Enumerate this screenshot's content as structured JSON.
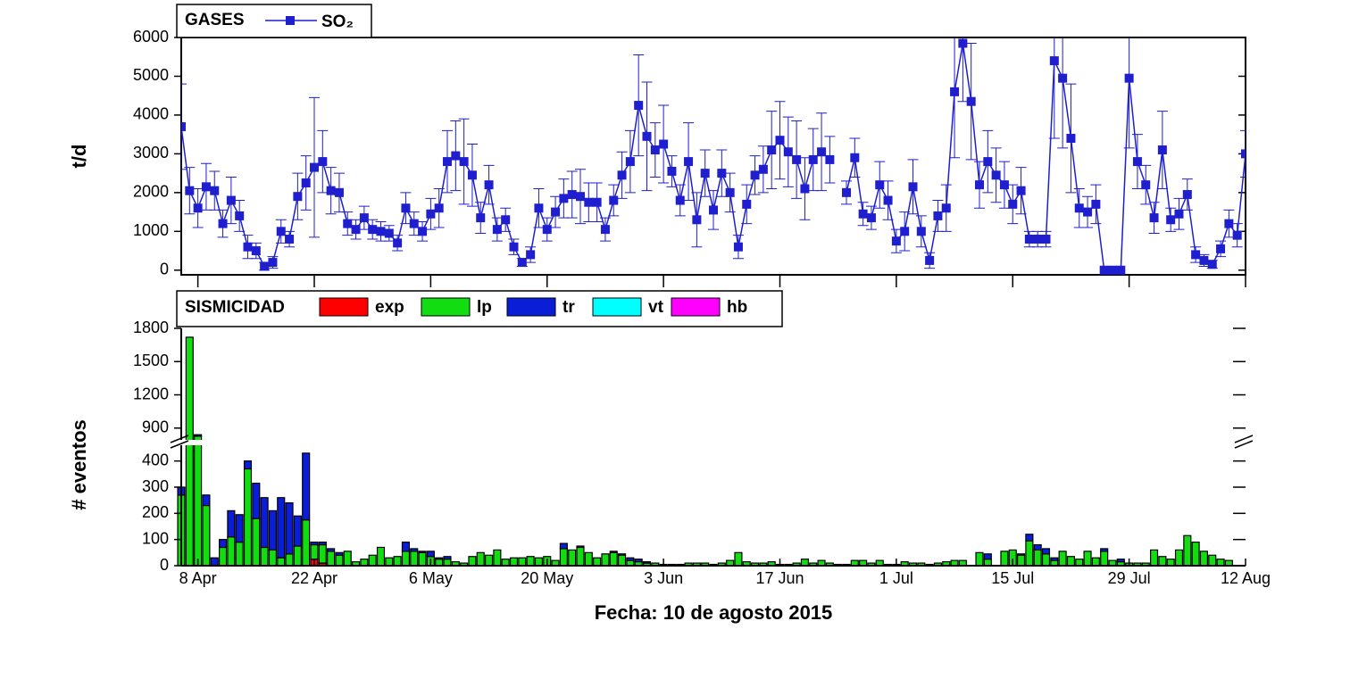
{
  "chart_data": [
    {
      "type": "line",
      "legend_title": "GASES",
      "ylabel": "t/d",
      "x": [
        -2,
        -1,
        0,
        1,
        2,
        3,
        4,
        5,
        6,
        7,
        8,
        9,
        10,
        11,
        12,
        13,
        14,
        15,
        16,
        17,
        18,
        19,
        20,
        21,
        22,
        23,
        24,
        25,
        26,
        27,
        28,
        29,
        30,
        31,
        32,
        33,
        34,
        35,
        36,
        37,
        38,
        39,
        40,
        41,
        42,
        43,
        44,
        45,
        46,
        47,
        48,
        49,
        50,
        51,
        52,
        53,
        54,
        55,
        56,
        57,
        58,
        59,
        60,
        61,
        62,
        63,
        64,
        65,
        66,
        67,
        68,
        69,
        70,
        71,
        72,
        73,
        74,
        75,
        76,
        77,
        78,
        79,
        80,
        81,
        82,
        83,
        84,
        85,
        86,
        87,
        88,
        89,
        90,
        91,
        92,
        93,
        94,
        95,
        96,
        97,
        98,
        99,
        100,
        101,
        102,
        103,
        104,
        105,
        106,
        107,
        108,
        109,
        110,
        111,
        112,
        113,
        114,
        115,
        116,
        117,
        118,
        119,
        120,
        121,
        122,
        123,
        124,
        125,
        126
      ],
      "series": [
        {
          "name": "SO₂",
          "color": "#1f1fd0",
          "values": [
            3700,
            2050,
            1600,
            2150,
            2050,
            1200,
            1800,
            1400,
            600,
            500,
            100,
            200,
            1000,
            800,
            1900,
            2250,
            2650,
            2800,
            2050,
            2000,
            1200,
            1050,
            1350,
            1050,
            1000,
            950,
            700,
            1600,
            1200,
            1000,
            1450,
            1600,
            2800,
            2950,
            2800,
            2450,
            1350,
            2200,
            1050,
            1300,
            600,
            200,
            400,
            1600,
            1050,
            1500,
            1850,
            1950,
            1900,
            1750,
            1750,
            1050,
            1800,
            2450,
            2800,
            4250,
            3450,
            3100,
            3250,
            2550,
            1800,
            2800,
            1300,
            2500,
            1550,
            2500,
            2000,
            600,
            1700,
            2450,
            2600,
            3100,
            3350,
            3050,
            2850,
            2100,
            2850,
            3050,
            2850,
            null,
            2000,
            2900,
            1450,
            1350,
            2200,
            1800,
            750,
            1000,
            2150,
            1000,
            250,
            1400,
            1600,
            4600,
            5850,
            4350,
            2200,
            2800,
            2450,
            2200,
            1700,
            2050,
            800,
            800,
            800,
            5400,
            4950,
            3400,
            1600,
            1500,
            1700,
            0,
            0,
            0,
            4950,
            2800,
            2200,
            1350,
            3100,
            1300,
            1450,
            1950,
            400,
            250,
            150,
            550,
            1200,
            900,
            3000
          ],
          "errors": [
            1100,
            600,
            500,
            600,
            500,
            350,
            600,
            400,
            300,
            200,
            100,
            150,
            300,
            200,
            600,
            700,
            1800,
            800,
            600,
            500,
            300,
            250,
            300,
            250,
            250,
            200,
            200,
            400,
            300,
            250,
            400,
            500,
            800,
            900,
            1100,
            800,
            400,
            500,
            300,
            300,
            200,
            100,
            200,
            500,
            300,
            400,
            500,
            600,
            700,
            500,
            500,
            300,
            400,
            600,
            800,
            1300,
            1400,
            700,
            1000,
            400,
            400,
            1000,
            700,
            600,
            500,
            600,
            500,
            300,
            500,
            500,
            600,
            1000,
            1000,
            900,
            1000,
            800,
            800,
            1000,
            600,
            null,
            300,
            500,
            300,
            300,
            600,
            500,
            300,
            500,
            700,
            400,
            200,
            400,
            600,
            1700,
            1500,
            1500,
            600,
            800,
            700,
            600,
            500,
            600,
            200,
            200,
            200,
            2000,
            1800,
            1400,
            500,
            400,
            500,
            0,
            0,
            0,
            1800,
            700,
            500,
            400,
            1000,
            300,
            400,
            400,
            200,
            150,
            100,
            200,
            350,
            300,
            600
          ]
        }
      ],
      "xlim": [
        -2,
        126
      ],
      "ylim": [
        -120,
        6000
      ],
      "yticks": [
        0,
        1000,
        2000,
        3000,
        4000,
        5000,
        6000
      ]
    },
    {
      "type": "bar",
      "legend_title": "SISMICIDAD",
      "ylabel": "# eventos",
      "xlabel": "Fecha: 10 de agosto 2015",
      "stacked": true,
      "x": [
        -2,
        -1,
        0,
        1,
        2,
        3,
        4,
        5,
        6,
        7,
        8,
        9,
        10,
        11,
        12,
        13,
        14,
        15,
        16,
        17,
        18,
        19,
        20,
        21,
        22,
        23,
        24,
        25,
        26,
        27,
        28,
        29,
        30,
        31,
        32,
        33,
        34,
        35,
        36,
        37,
        38,
        39,
        40,
        41,
        42,
        43,
        44,
        45,
        46,
        47,
        48,
        49,
        50,
        51,
        52,
        53,
        54,
        55,
        56,
        57,
        58,
        59,
        60,
        61,
        62,
        63,
        64,
        65,
        66,
        67,
        68,
        69,
        70,
        71,
        72,
        73,
        74,
        75,
        76,
        77,
        78,
        79,
        80,
        81,
        82,
        83,
        84,
        85,
        86,
        87,
        88,
        89,
        90,
        91,
        92,
        93,
        94,
        95,
        96,
        97,
        98,
        99,
        100,
        101,
        102,
        103,
        104,
        105,
        106,
        107,
        108,
        109,
        110,
        111,
        112,
        113,
        114,
        115,
        116,
        117,
        118,
        119,
        120,
        121,
        122,
        123,
        124
      ],
      "series": [
        {
          "name": "exp",
          "color": "#ff0000",
          "values": [
            0,
            0,
            0,
            0,
            0,
            0,
            0,
            0,
            0,
            0,
            0,
            0,
            0,
            0,
            0,
            0,
            25,
            10,
            0,
            0,
            0,
            0,
            0,
            0,
            0,
            0,
            0,
            0,
            0,
            0,
            0,
            0,
            0,
            0,
            0,
            0,
            0,
            0,
            0,
            0,
            0,
            0,
            0,
            0,
            0,
            0,
            0,
            0,
            0,
            0,
            0,
            0,
            0,
            0,
            0,
            0,
            0,
            0,
            0,
            0,
            0,
            0,
            0,
            0,
            0,
            0,
            0,
            0,
            0,
            0,
            0,
            0,
            0,
            0,
            0,
            0,
            0,
            0,
            0,
            0,
            0,
            0,
            0,
            0,
            0,
            0,
            0,
            0,
            0,
            0,
            0,
            0,
            0,
            0,
            0,
            0,
            0,
            0,
            0,
            0,
            0,
            0,
            0,
            0,
            0,
            0,
            0,
            0,
            0,
            0,
            0,
            0,
            0,
            0,
            0,
            0,
            0,
            0,
            0,
            0,
            0,
            0,
            0,
            0,
            0,
            0,
            0
          ]
        },
        {
          "name": "lp",
          "color": "#11dd11",
          "values": [
            270,
            1720,
            780,
            230,
            0,
            70,
            110,
            90,
            370,
            180,
            70,
            60,
            30,
            45,
            75,
            175,
            55,
            70,
            55,
            40,
            55,
            15,
            25,
            40,
            70,
            30,
            35,
            55,
            55,
            50,
            35,
            25,
            25,
            15,
            10,
            35,
            50,
            40,
            60,
            25,
            30,
            30,
            35,
            30,
            35,
            20,
            65,
            60,
            70,
            50,
            30,
            45,
            50,
            40,
            20,
            15,
            10,
            10,
            5,
            5,
            5,
            10,
            10,
            10,
            5,
            10,
            20,
            50,
            15,
            10,
            10,
            15,
            5,
            5,
            10,
            25,
            10,
            20,
            10,
            5,
            5,
            20,
            20,
            10,
            20,
            5,
            5,
            15,
            10,
            10,
            5,
            10,
            15,
            20,
            20,
            0,
            50,
            25,
            0,
            55,
            60,
            40,
            95,
            60,
            45,
            20,
            55,
            35,
            25,
            55,
            30,
            55,
            20,
            15,
            10,
            10,
            10,
            60,
            35,
            25,
            60,
            115,
            90,
            55,
            40,
            25,
            20
          ]
        },
        {
          "name": "tr",
          "color": "#0a1ed8",
          "values": [
            30,
            0,
            40,
            40,
            30,
            30,
            100,
            105,
            30,
            135,
            190,
            150,
            230,
            195,
            115,
            255,
            10,
            10,
            10,
            10,
            0,
            0,
            0,
            0,
            0,
            0,
            0,
            35,
            10,
            5,
            20,
            5,
            10,
            0,
            0,
            0,
            0,
            0,
            0,
            0,
            0,
            0,
            0,
            0,
            0,
            0,
            20,
            0,
            5,
            0,
            0,
            0,
            5,
            5,
            10,
            10,
            5,
            0,
            0,
            0,
            0,
            0,
            0,
            0,
            0,
            0,
            0,
            0,
            0,
            0,
            0,
            0,
            0,
            0,
            0,
            0,
            0,
            0,
            0,
            0,
            0,
            0,
            0,
            0,
            0,
            0,
            0,
            0,
            0,
            0,
            0,
            0,
            0,
            0,
            0,
            0,
            0,
            20,
            0,
            0,
            0,
            5,
            25,
            20,
            20,
            10,
            0,
            0,
            0,
            0,
            0,
            10,
            0,
            10,
            0,
            0,
            0,
            0,
            0,
            0,
            0,
            0,
            0,
            0,
            0,
            0,
            0
          ]
        },
        {
          "name": "vt",
          "color": "#00ffff",
          "values": [
            0,
            0,
            0,
            0,
            0,
            0,
            0,
            0,
            0,
            0,
            0,
            0,
            0,
            0,
            0,
            0,
            0,
            0,
            0,
            0,
            0,
            0,
            0,
            0,
            0,
            0,
            0,
            0,
            0,
            0,
            0,
            0,
            0,
            0,
            0,
            0,
            0,
            0,
            0,
            0,
            0,
            0,
            0,
            0,
            0,
            0,
            0,
            0,
            0,
            0,
            0,
            0,
            0,
            0,
            0,
            0,
            0,
            0,
            0,
            0,
            0,
            0,
            0,
            0,
            0,
            0,
            0,
            0,
            0,
            0,
            0,
            0,
            0,
            0,
            0,
            0,
            0,
            0,
            0,
            0,
            0,
            0,
            0,
            0,
            0,
            0,
            0,
            0,
            0,
            0,
            0,
            0,
            0,
            0,
            0,
            0,
            0,
            0,
            0,
            0,
            0,
            0,
            0,
            0,
            0,
            0,
            0,
            0,
            0,
            0,
            0,
            0,
            0,
            0,
            0,
            0,
            0,
            0,
            0,
            0,
            0,
            0,
            0,
            0,
            0,
            0,
            0
          ]
        },
        {
          "name": "hb",
          "color": "#ff00ff",
          "values": [
            0,
            0,
            0,
            0,
            0,
            0,
            0,
            0,
            0,
            0,
            0,
            0,
            0,
            0,
            0,
            0,
            0,
            0,
            0,
            0,
            0,
            0,
            0,
            0,
            0,
            0,
            0,
            0,
            0,
            0,
            0,
            0,
            0,
            0,
            0,
            0,
            0,
            0,
            0,
            0,
            0,
            0,
            0,
            0,
            0,
            0,
            0,
            0,
            0,
            0,
            0,
            0,
            0,
            0,
            0,
            0,
            0,
            0,
            0,
            0,
            0,
            0,
            0,
            0,
            0,
            0,
            0,
            0,
            0,
            0,
            0,
            0,
            0,
            0,
            0,
            0,
            0,
            0,
            0,
            0,
            0,
            0,
            0,
            0,
            0,
            0,
            0,
            0,
            0,
            0,
            0,
            0,
            0,
            0,
            0,
            0,
            0,
            0,
            0,
            0,
            0,
            0,
            0,
            0,
            0,
            0,
            0,
            0,
            0,
            0,
            0,
            0,
            0,
            0,
            0,
            0,
            0,
            0,
            0,
            0,
            0,
            0,
            0,
            0,
            0,
            0,
            0
          ]
        }
      ],
      "xlim": [
        -2,
        126
      ],
      "ylim": [
        0,
        1800
      ],
      "axis_break": [
        450,
        850
      ],
      "yticks": [
        0,
        100,
        200,
        300,
        400,
        900,
        1200,
        1500,
        1800
      ],
      "xticks": [
        {
          "value": 0,
          "label": "8 Apr"
        },
        {
          "value": 14,
          "label": "22 Apr"
        },
        {
          "value": 28,
          "label": "6 May"
        },
        {
          "value": 42,
          "label": "20 May"
        },
        {
          "value": 56,
          "label": "3 Jun"
        },
        {
          "value": 70,
          "label": "17 Jun"
        },
        {
          "value": 84,
          "label": "1 Jul"
        },
        {
          "value": 98,
          "label": "15 Jul"
        },
        {
          "value": 112,
          "label": "29 Jul"
        },
        {
          "value": 126,
          "label": "12 Aug"
        }
      ]
    }
  ]
}
